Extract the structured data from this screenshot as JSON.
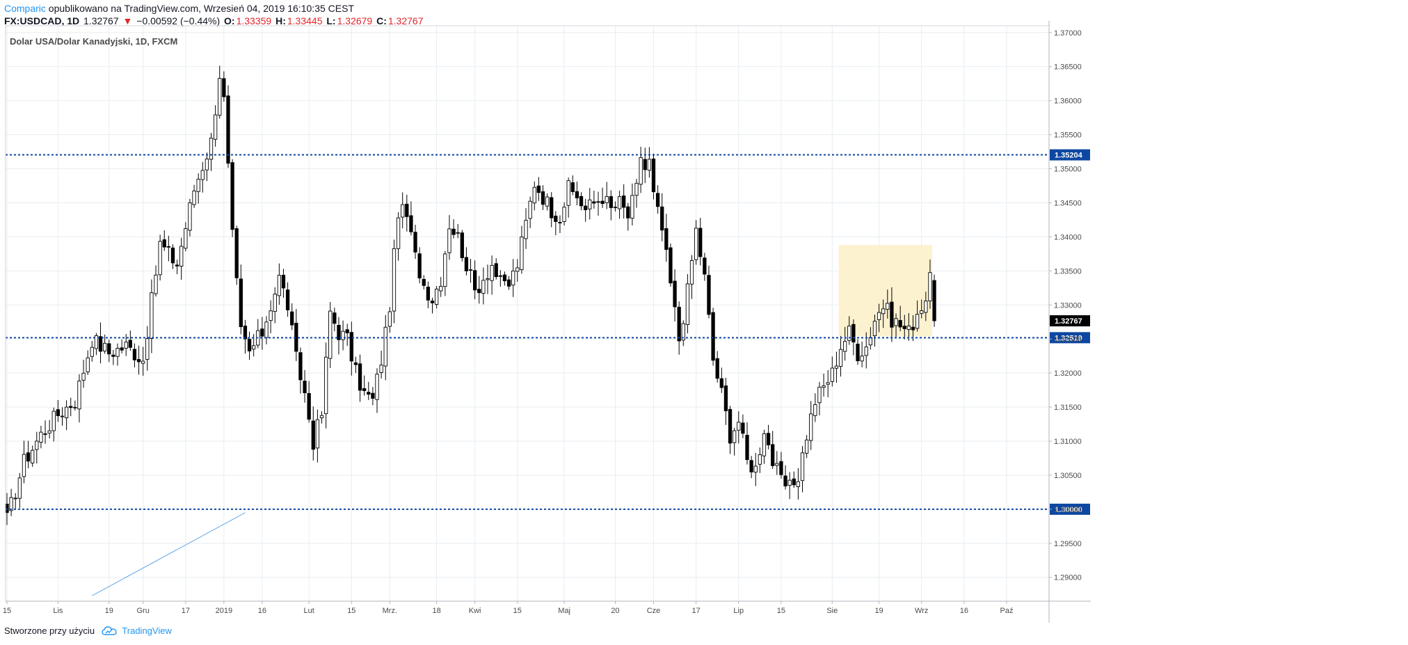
{
  "header": {
    "author": "Comparic",
    "published_text": "opublikowano na TradingView.com, Wrzesień 04, 2019 16:10:35 CEST"
  },
  "quote": {
    "symbol": "FX:USDCAD, 1D",
    "last": "1.32767",
    "change_arrow": "▼",
    "change": "−0.00592 (−0.44%)",
    "open_label": "O:",
    "open": "1.33359",
    "high_label": "H:",
    "high": "1.33445",
    "low_label": "L:",
    "low": "1.32679",
    "close_label": "C:",
    "close": "1.32767"
  },
  "footer": {
    "created_with": "Stworzone przy użyciu",
    "brand": "TradingView"
  },
  "colors": {
    "bull_fill": "#ffffff",
    "bear_fill": "#000000",
    "candle_outline": "#000000",
    "level_line": "#0d47a1",
    "level_label_bg": "#0d47a1",
    "last_price_bg": "#000000",
    "highlight_box": "#fdf0c8",
    "trend_line": "#64a7e6",
    "grid": "#e7edf1"
  },
  "chart_data": {
    "type": "candlestick",
    "title": "Dolar USA/Dolar Kanadyjski, 1D, FXCM",
    "ylim": [
      1.2865,
      1.371
    ],
    "y_ticks": [
      "1.37000",
      "1.36500",
      "1.36000",
      "1.35500",
      "1.35000",
      "1.34500",
      "1.34000",
      "1.33500",
      "1.33000",
      "1.32500",
      "1.32000",
      "1.31500",
      "1.31000",
      "1.30500",
      "1.30000",
      "1.29500",
      "1.29000"
    ],
    "x_ticks": [
      {
        "label": "15",
        "i": 0
      },
      {
        "label": "Lis",
        "i": 12
      },
      {
        "label": "19",
        "i": 24
      },
      {
        "label": "Gru",
        "i": 32
      },
      {
        "label": "17",
        "i": 42
      },
      {
        "label": "2019",
        "i": 51
      },
      {
        "label": "16",
        "i": 60
      },
      {
        "label": "Lut",
        "i": 71
      },
      {
        "label": "15",
        "i": 81
      },
      {
        "label": "Mrz.",
        "i": 90
      },
      {
        "label": "18",
        "i": 101
      },
      {
        "label": "Kwi",
        "i": 110
      },
      {
        "label": "15",
        "i": 120
      },
      {
        "label": "Maj",
        "i": 131
      },
      {
        "label": "20",
        "i": 143
      },
      {
        "label": "Cze",
        "i": 152
      },
      {
        "label": "17",
        "i": 162
      },
      {
        "label": "Lip",
        "i": 172
      },
      {
        "label": "15",
        "i": 182
      },
      {
        "label": "Sie",
        "i": 194
      },
      {
        "label": "19",
        "i": 205
      },
      {
        "label": "Wrz",
        "i": 215
      },
      {
        "label": "16",
        "i": 225
      },
      {
        "label": "Paź",
        "i": 235
      }
    ],
    "levels": [
      {
        "value": 1.35204,
        "label": "1.35204"
      },
      {
        "value": 1.32519,
        "label": "1.32519"
      },
      {
        "value": 1.3,
        "label": "1.30000"
      }
    ],
    "last_price": {
      "value": 1.32767,
      "label": "1.32767"
    },
    "highlight_box": {
      "i_start": 196,
      "i_end": 217,
      "y_low": 1.3254,
      "y_high": 1.3388
    },
    "trend_line": {
      "i_start": 20,
      "y_start": 1.2873,
      "i_end": 56,
      "y_end": 1.2995
    },
    "anchors": [
      [
        0,
        1.2985
      ],
      [
        4,
        1.307
      ],
      [
        8,
        1.311
      ],
      [
        12,
        1.314
      ],
      [
        16,
        1.316
      ],
      [
        20,
        1.325
      ],
      [
        24,
        1.323
      ],
      [
        28,
        1.324
      ],
      [
        32,
        1.322
      ],
      [
        36,
        1.339
      ],
      [
        40,
        1.336
      ],
      [
        44,
        1.347
      ],
      [
        48,
        1.354
      ],
      [
        50,
        1.364
      ],
      [
        51,
        1.36
      ],
      [
        53,
        1.34
      ],
      [
        55,
        1.326
      ],
      [
        57,
        1.323
      ],
      [
        60,
        1.326
      ],
      [
        64,
        1.334
      ],
      [
        66,
        1.33
      ],
      [
        68,
        1.322
      ],
      [
        70,
        1.317
      ],
      [
        72,
        1.31
      ],
      [
        74,
        1.314
      ],
      [
        76,
        1.329
      ],
      [
        78,
        1.326
      ],
      [
        80,
        1.325
      ],
      [
        82,
        1.32
      ],
      [
        84,
        1.317
      ],
      [
        86,
        1.316
      ],
      [
        88,
        1.322
      ],
      [
        90,
        1.33
      ],
      [
        92,
        1.344
      ],
      [
        94,
        1.343
      ],
      [
        96,
        1.337
      ],
      [
        98,
        1.333
      ],
      [
        100,
        1.331
      ],
      [
        102,
        1.334
      ],
      [
        104,
        1.342
      ],
      [
        106,
        1.34
      ],
      [
        108,
        1.336
      ],
      [
        110,
        1.332
      ],
      [
        112,
        1.334
      ],
      [
        114,
        1.336
      ],
      [
        116,
        1.333
      ],
      [
        118,
        1.333
      ],
      [
        120,
        1.336
      ],
      [
        122,
        1.342
      ],
      [
        124,
        1.348
      ],
      [
        126,
        1.346
      ],
      [
        128,
        1.344
      ],
      [
        130,
        1.343
      ],
      [
        132,
        1.347
      ],
      [
        134,
        1.346
      ],
      [
        136,
        1.344
      ],
      [
        138,
        1.345
      ],
      [
        140,
        1.346
      ],
      [
        142,
        1.344
      ],
      [
        144,
        1.345
      ],
      [
        146,
        1.343
      ],
      [
        148,
        1.347
      ],
      [
        149,
        1.352
      ],
      [
        150,
        1.35
      ],
      [
        151,
        1.351
      ],
      [
        152,
        1.346
      ],
      [
        154,
        1.341
      ],
      [
        156,
        1.333
      ],
      [
        158,
        1.325
      ],
      [
        160,
        1.332
      ],
      [
        162,
        1.341
      ],
      [
        164,
        1.334
      ],
      [
        166,
        1.322
      ],
      [
        168,
        1.317
      ],
      [
        170,
        1.311
      ],
      [
        172,
        1.313
      ],
      [
        174,
        1.307
      ],
      [
        176,
        1.306
      ],
      [
        178,
        1.312
      ],
      [
        180,
        1.307
      ],
      [
        182,
        1.304
      ],
      [
        184,
        1.303
      ],
      [
        186,
        1.305
      ],
      [
        188,
        1.311
      ],
      [
        190,
        1.316
      ],
      [
        192,
        1.318
      ],
      [
        194,
        1.32
      ],
      [
        196,
        1.324
      ],
      [
        198,
        1.326
      ],
      [
        200,
        1.323
      ],
      [
        202,
        1.324
      ],
      [
        204,
        1.328
      ],
      [
        206,
        1.33
      ],
      [
        208,
        1.328
      ],
      [
        210,
        1.327
      ],
      [
        212,
        1.326
      ],
      [
        214,
        1.329
      ],
      [
        216,
        1.331
      ],
      [
        217,
        1.3335
      ],
      [
        218,
        1.32767
      ]
    ]
  }
}
